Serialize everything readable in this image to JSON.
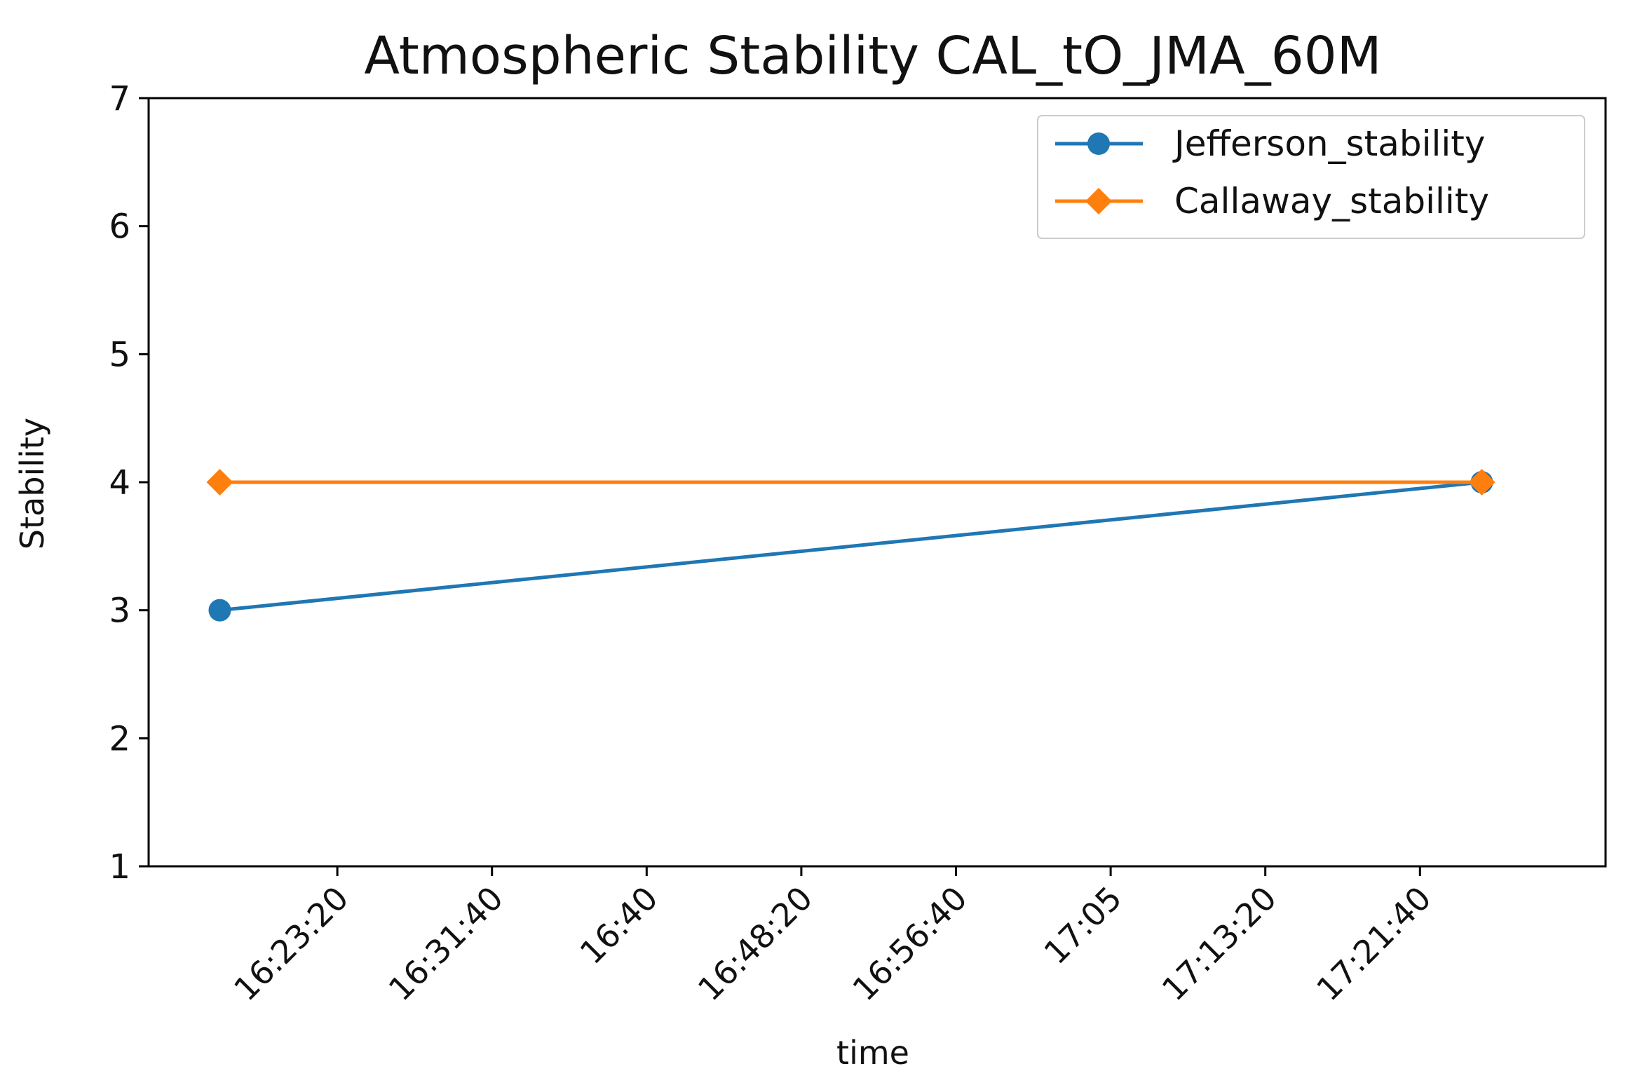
{
  "chart_data": {
    "type": "line",
    "title": "Atmospheric Stability CAL_tO_JMA_60M",
    "xlabel": "time",
    "ylabel": "Stability",
    "ylim": [
      1,
      7
    ],
    "yticks": [
      "1",
      "2",
      "3",
      "4",
      "5",
      "6",
      "7"
    ],
    "xlim_seconds": [
      58390,
      63100
    ],
    "xticks": [
      {
        "label": "16:23:20",
        "t": 59000
      },
      {
        "label": "16:31:40",
        "t": 59500
      },
      {
        "label": "16:40",
        "t": 60000
      },
      {
        "label": "16:48:20",
        "t": 60500
      },
      {
        "label": "16:56:40",
        "t": 61000
      },
      {
        "label": "17:05",
        "t": 61500
      },
      {
        "label": "17:13:20",
        "t": 62000
      },
      {
        "label": "17:21:40",
        "t": 62500
      }
    ],
    "x_seconds": [
      58620,
      62700
    ],
    "series": [
      {
        "name": "Jefferson_stability",
        "values": [
          3,
          4
        ],
        "color": "#1f77b4",
        "marker": "circle"
      },
      {
        "name": "Callaway_stability",
        "values": [
          4,
          4
        ],
        "color": "#ff7f0e",
        "marker": "diamond"
      }
    ],
    "legend_position": "top-right",
    "grid": false
  }
}
